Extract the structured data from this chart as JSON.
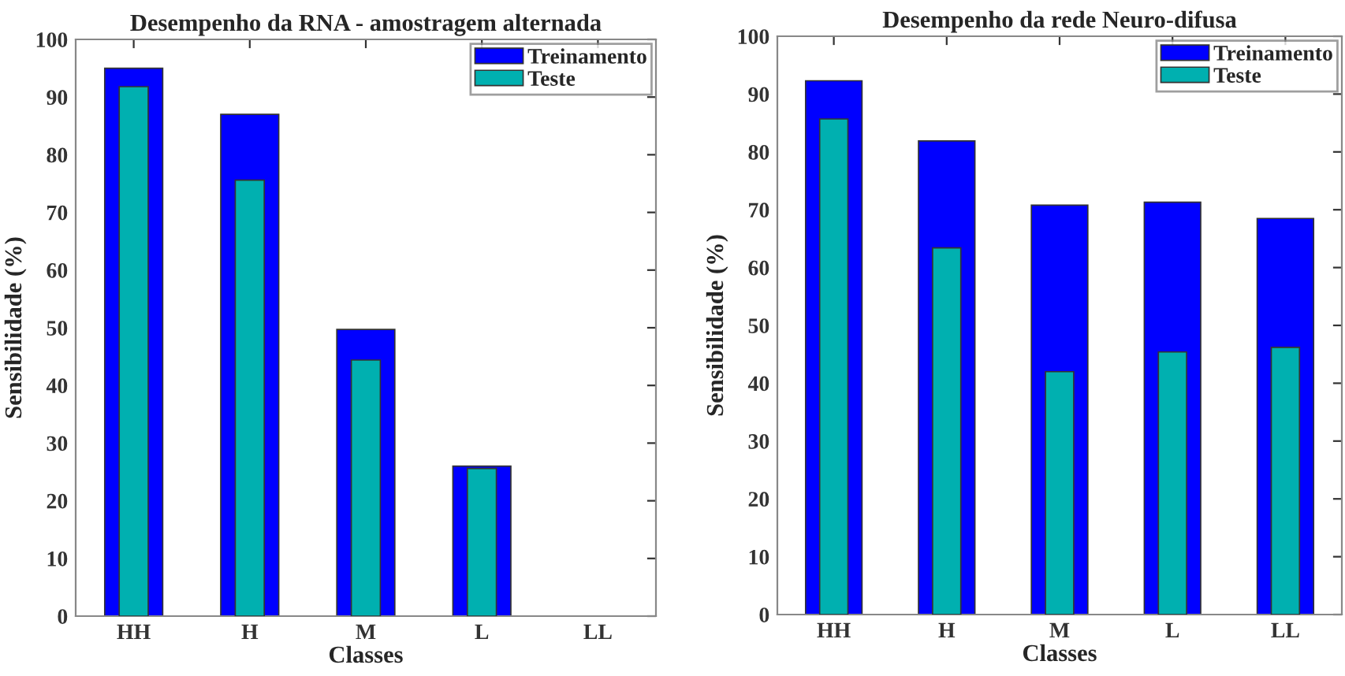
{
  "chart_data": [
    {
      "type": "bar",
      "title": "Desempenho da RNA - amostragem alternada",
      "xlabel": "Classes",
      "ylabel": "Sensibilidade (%)",
      "categories": [
        "HH",
        "H",
        "M",
        "L",
        "LL"
      ],
      "series": [
        {
          "name": "Treinamento",
          "color": "#0000ff",
          "values": [
            95,
            87,
            49.7,
            26,
            null
          ]
        },
        {
          "name": "Teste",
          "color": "#00b0b0",
          "values": [
            91.8,
            75.6,
            44.4,
            25.6,
            null
          ]
        }
      ],
      "ylim": [
        0,
        100
      ],
      "yticks": [
        0,
        10,
        20,
        30,
        40,
        50,
        60,
        70,
        80,
        90,
        100
      ],
      "grid": false,
      "legend": "top right"
    },
    {
      "type": "bar",
      "title": "Desempenho da rede Neuro-difusa",
      "xlabel": "Classes",
      "ylabel": "Sensibilidade (%)",
      "categories": [
        "HH",
        "H",
        "M",
        "L",
        "LL"
      ],
      "series": [
        {
          "name": "Treinamento",
          "color": "#0000ff",
          "values": [
            92.3,
            81.9,
            70.8,
            71.3,
            68.5
          ]
        },
        {
          "name": "Teste",
          "color": "#00b0b0",
          "values": [
            85.7,
            63.4,
            42,
            45.4,
            46.2
          ]
        }
      ],
      "ylim": [
        0,
        100
      ],
      "yticks": [
        0,
        10,
        20,
        30,
        40,
        50,
        60,
        70,
        80,
        90,
        100
      ],
      "grid": false,
      "legend": "top right"
    }
  ]
}
